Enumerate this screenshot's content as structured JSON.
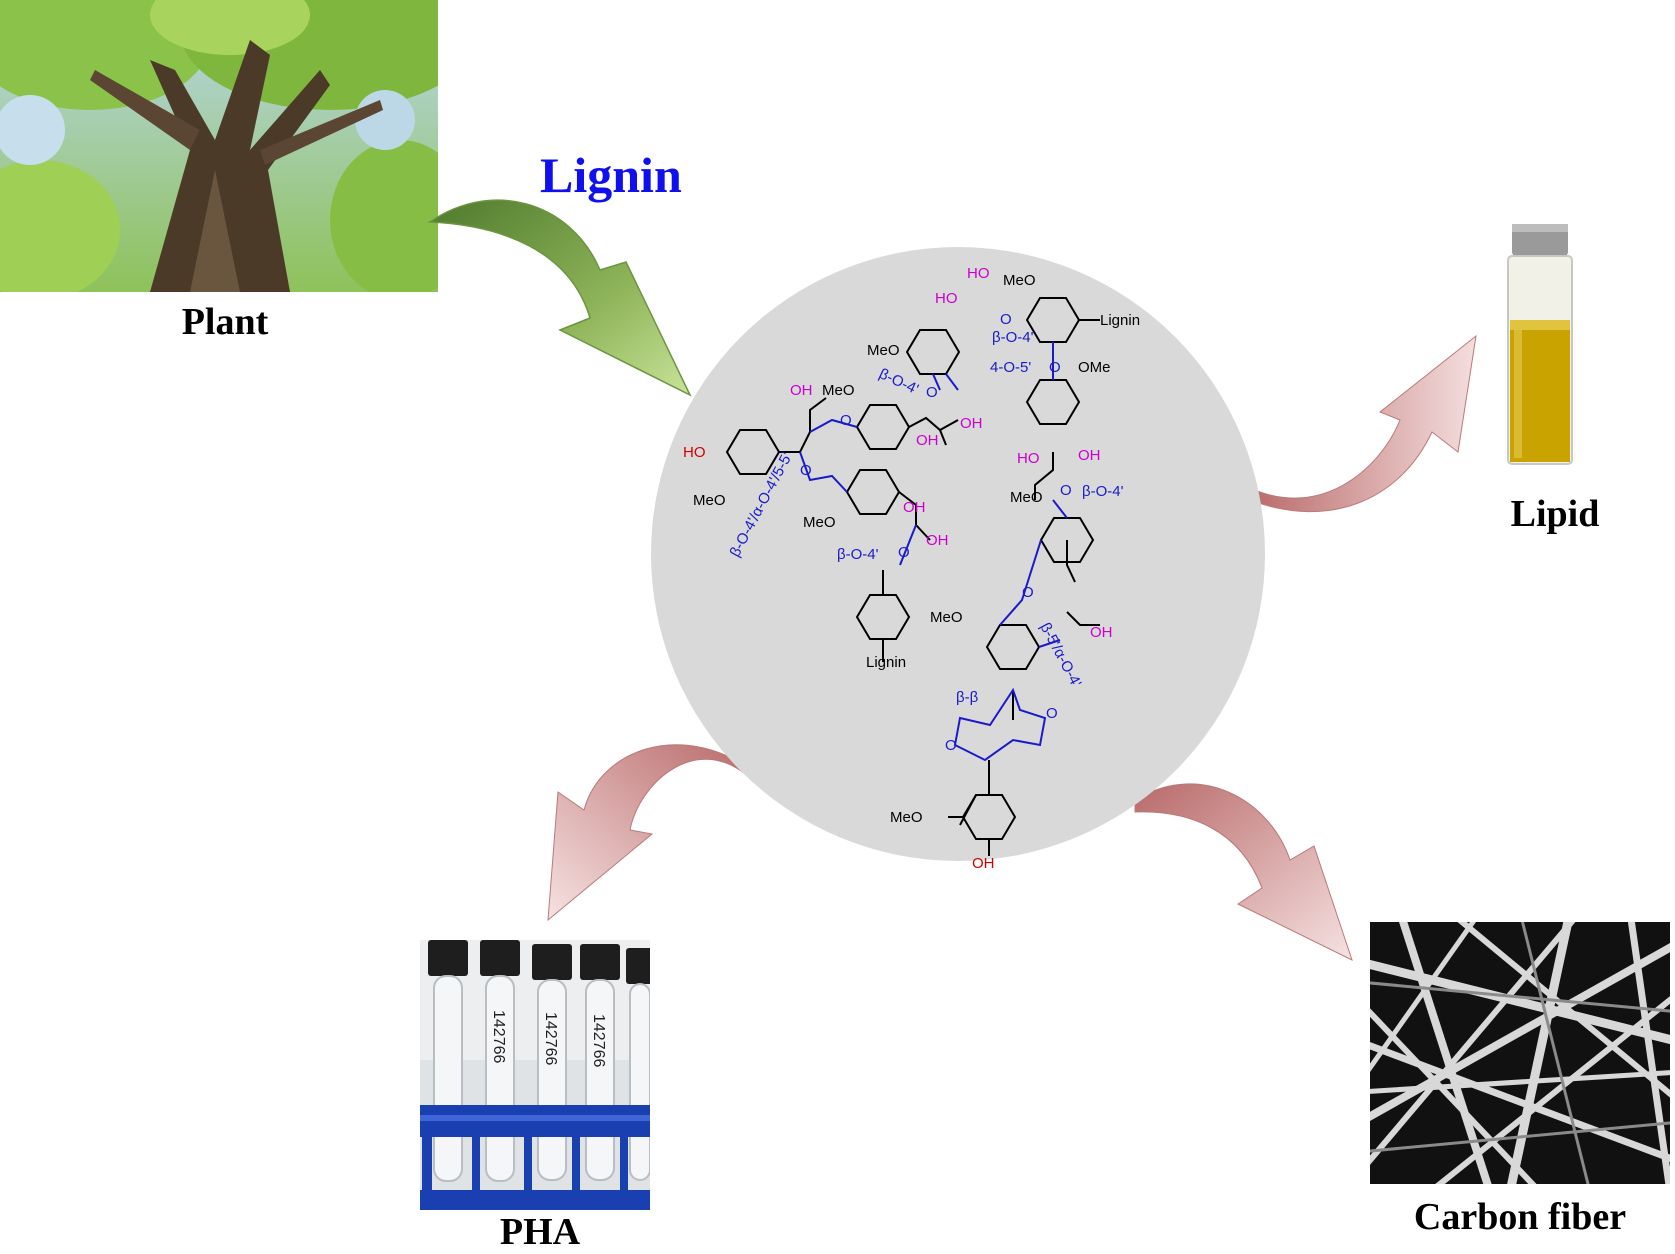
{
  "title": "Lignin",
  "nodes": {
    "plant": "Plant",
    "lipid": "Lipid",
    "pha": "PHA",
    "carbon_fiber": "Carbon fiber"
  },
  "structure": {
    "substituents": {
      "ome": "MeO",
      "ome_right": "OMe",
      "oh": "OH",
      "ho": "HO",
      "o": "O",
      "lignin": "Lignin"
    },
    "linkages": {
      "b_o_4": "β-O-4'",
      "four_o_5": "4-O-5'",
      "dibenzodioxocin": "β-O-4'/α-O-4'/5-5'",
      "b_5": "β-5'/α-O-4'",
      "b_b": "β-β"
    }
  },
  "tube_labels": [
    "142766",
    "142766",
    "142766"
  ],
  "colors": {
    "title": "#1010ee",
    "linkage": "#1a1acc",
    "hydroxyl": "#cc00cc",
    "phenol": "#d40000",
    "circle": "#d9d9d9",
    "green_arrow": "#8fb55a",
    "pink_arrow": "#cf8c8c",
    "oil": "#c9a300"
  }
}
